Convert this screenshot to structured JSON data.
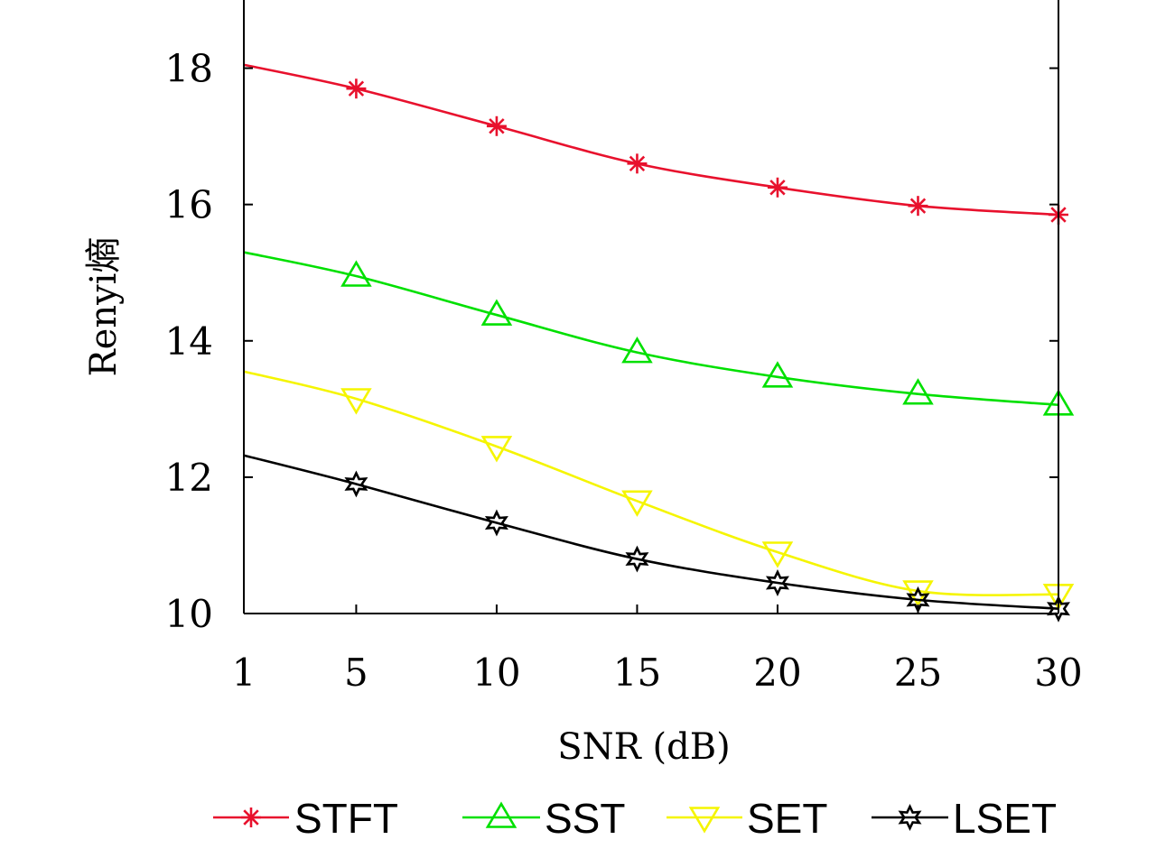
{
  "chart_data": {
    "type": "line",
    "xlabel": "SNR (dB)",
    "ylabel": "Renyi熵",
    "x_ticks": [
      1,
      5,
      10,
      15,
      20,
      25,
      30
    ],
    "y_ticks": [
      10,
      12,
      14,
      16,
      18
    ],
    "xlim": [
      1,
      30
    ],
    "ylim": [
      10,
      19
    ],
    "grid": false,
    "legend_position": "bottom",
    "series": [
      {
        "name": "STFT",
        "color": "#e8112d",
        "marker": "asterisk",
        "x": [
          1,
          5,
          10,
          15,
          20,
          25,
          30
        ],
        "y": [
          18.05,
          17.7,
          17.15,
          16.6,
          16.25,
          15.98,
          15.85
        ]
      },
      {
        "name": "SST",
        "color": "#00e000",
        "marker": "triangle-up",
        "x": [
          1,
          5,
          10,
          15,
          20,
          25,
          30
        ],
        "y": [
          15.3,
          14.95,
          14.38,
          13.83,
          13.47,
          13.22,
          13.06
        ]
      },
      {
        "name": "SET",
        "color": "#f5f500",
        "marker": "triangle-down",
        "x": [
          1,
          5,
          10,
          15,
          20,
          25,
          30
        ],
        "y": [
          13.55,
          13.15,
          12.45,
          11.65,
          10.9,
          10.33,
          10.28
        ]
      },
      {
        "name": "LSET",
        "color": "#000000",
        "marker": "hexagram",
        "x": [
          1,
          5,
          10,
          15,
          20,
          25,
          30
        ],
        "y": [
          12.32,
          11.9,
          11.33,
          10.8,
          10.45,
          10.2,
          10.07
        ]
      }
    ]
  }
}
